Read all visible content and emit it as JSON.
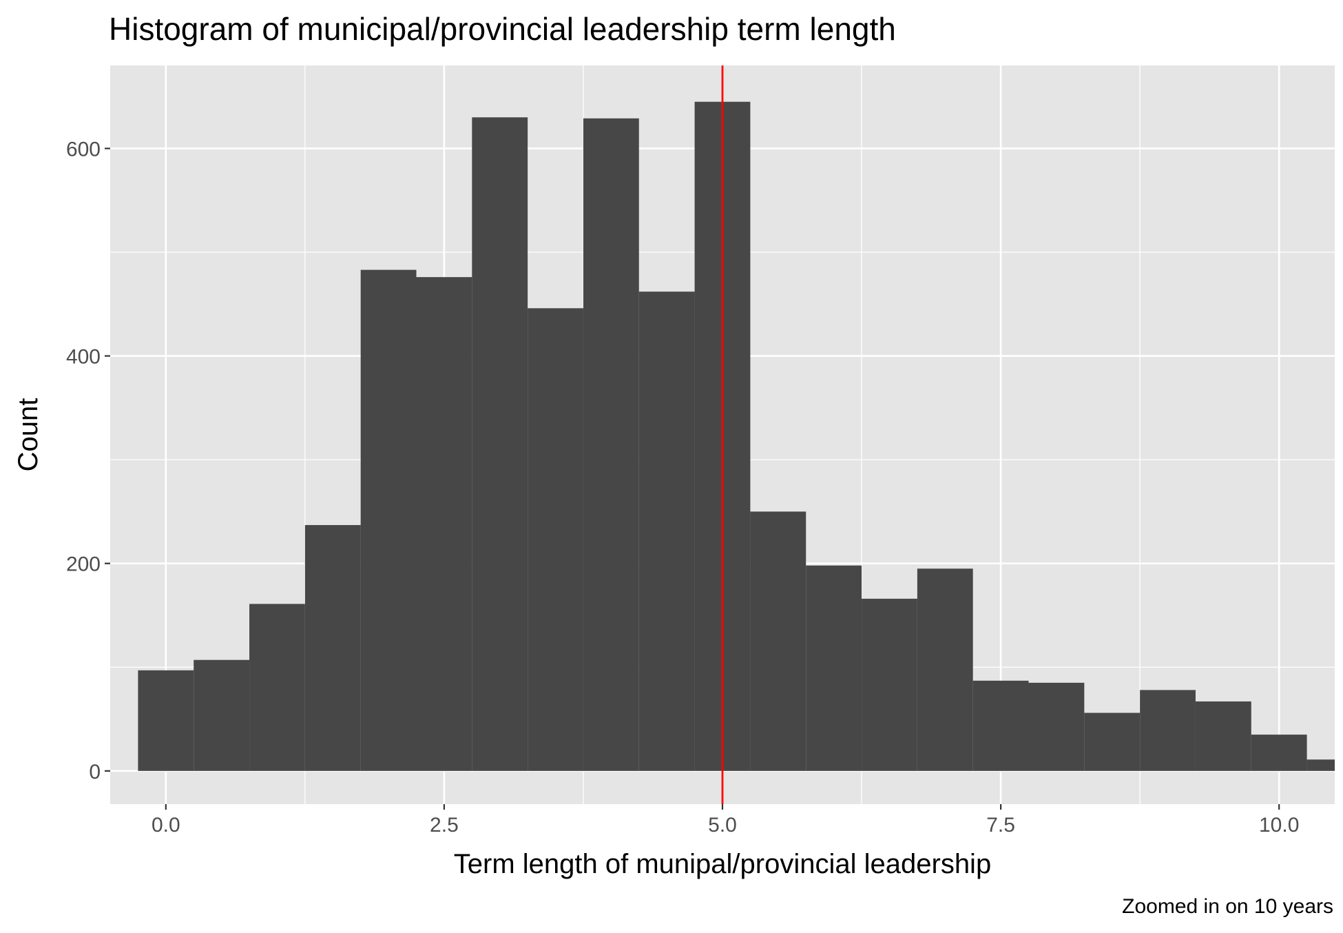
{
  "chart_data": {
    "type": "bar",
    "title": "Histogram of municipal/provincial leadership term length",
    "xlabel": "Term length of munipal/provincial leadership",
    "ylabel": "Count",
    "caption": "Zoomed in on 10 years",
    "bin_width": 0.5,
    "bins": [
      {
        "x0": -0.25,
        "x1": 0.25,
        "count": 97
      },
      {
        "x0": 0.25,
        "x1": 0.75,
        "count": 107
      },
      {
        "x0": 0.75,
        "x1": 1.25,
        "count": 161
      },
      {
        "x0": 1.25,
        "x1": 1.75,
        "count": 237
      },
      {
        "x0": 1.75,
        "x1": 2.25,
        "count": 483
      },
      {
        "x0": 2.25,
        "x1": 2.75,
        "count": 476
      },
      {
        "x0": 2.75,
        "x1": 3.25,
        "count": 630
      },
      {
        "x0": 3.25,
        "x1": 3.75,
        "count": 446
      },
      {
        "x0": 3.75,
        "x1": 4.25,
        "count": 629
      },
      {
        "x0": 4.25,
        "x1": 4.75,
        "count": 462
      },
      {
        "x0": 4.75,
        "x1": 5.25,
        "count": 645
      },
      {
        "x0": 5.25,
        "x1": 5.75,
        "count": 250
      },
      {
        "x0": 5.75,
        "x1": 6.25,
        "count": 198
      },
      {
        "x0": 6.25,
        "x1": 6.75,
        "count": 166
      },
      {
        "x0": 6.75,
        "x1": 7.25,
        "count": 195
      },
      {
        "x0": 7.25,
        "x1": 7.75,
        "count": 87
      },
      {
        "x0": 7.75,
        "x1": 8.25,
        "count": 85
      },
      {
        "x0": 8.25,
        "x1": 8.75,
        "count": 56
      },
      {
        "x0": 8.75,
        "x1": 9.25,
        "count": 78
      },
      {
        "x0": 9.25,
        "x1": 9.75,
        "count": 67
      },
      {
        "x0": 9.75,
        "x1": 10.25,
        "count": 35
      },
      {
        "x0": 10.25,
        "x1": 10.75,
        "count": 11
      }
    ],
    "xlim": [
      -0.5,
      10.5
    ],
    "ylim": [
      -32,
      680
    ],
    "x_ticks": [
      0,
      2.5,
      5,
      7.5,
      10
    ],
    "x_tick_labels": [
      "0.0",
      "2.5",
      "5.0",
      "7.5",
      "10.0"
    ],
    "y_ticks": [
      0,
      200,
      400,
      600
    ],
    "y_tick_labels": [
      "0",
      "200",
      "400",
      "600"
    ],
    "reference_line": {
      "x": 5,
      "color": "#ff0000"
    },
    "bar_color": "#474747",
    "panel_color": "#e5e5e5",
    "grid": true,
    "legend": "none"
  }
}
